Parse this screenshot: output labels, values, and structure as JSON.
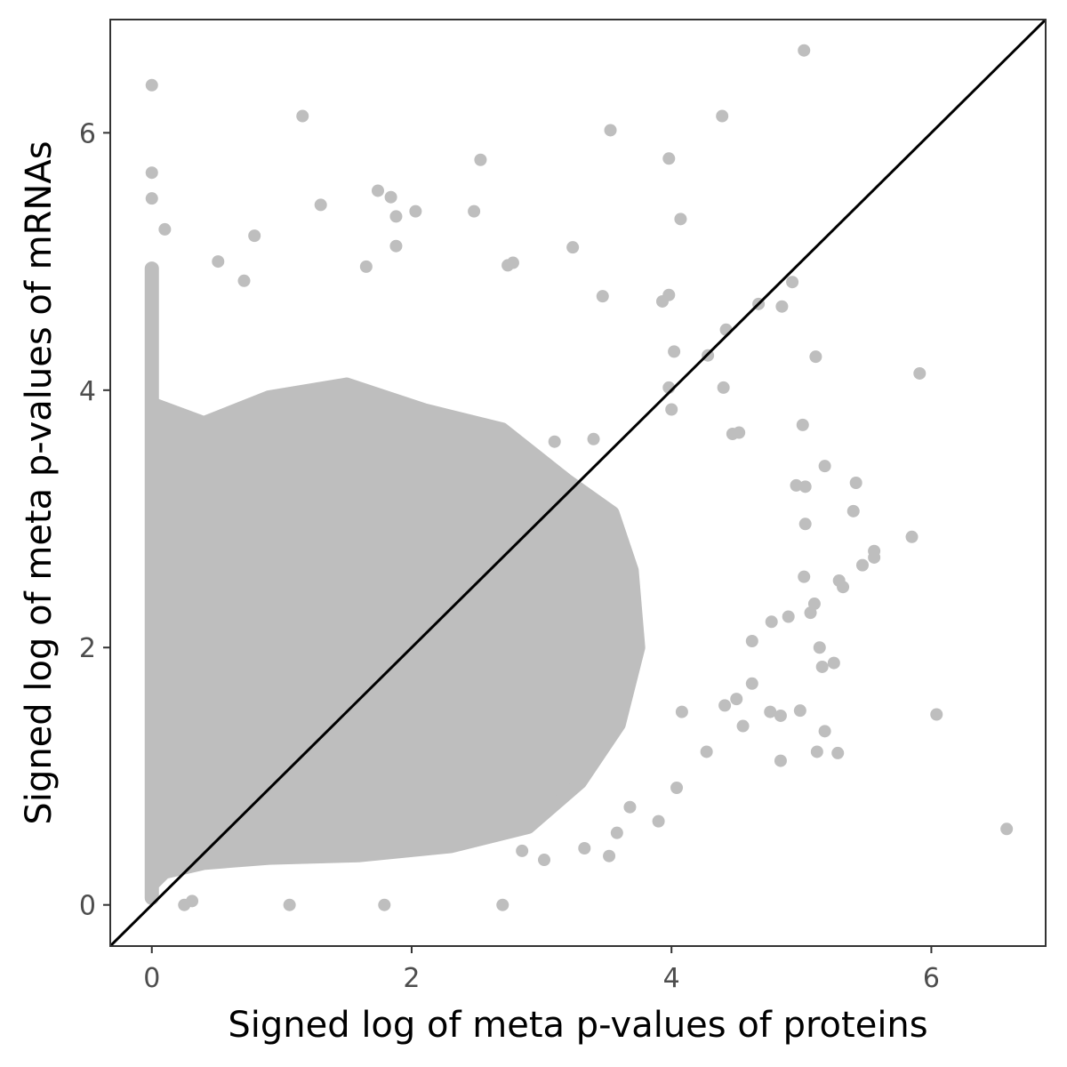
{
  "chart_data": {
    "type": "scatter",
    "title": "",
    "xlabel": "Signed log of meta p-values of proteins",
    "ylabel": "Signed log of meta p-values of mRNAs",
    "xlim": [
      -0.32,
      6.88
    ],
    "ylim": [
      -0.32,
      6.88
    ],
    "x_ticks": [
      0,
      2,
      4,
      6
    ],
    "y_ticks": [
      0,
      2,
      4,
      6
    ],
    "x_tick_labels": [
      "0",
      "2",
      "4",
      "6"
    ],
    "y_tick_labels": [
      "0",
      "2",
      "4",
      "6"
    ],
    "grid": false,
    "point_color": "#bebebe",
    "reference_line": {
      "slope": 1,
      "intercept": 0,
      "color": "#000000"
    },
    "series": [
      {
        "values_note_outliers": true,
        "points": [
          [
            5.02,
            6.64
          ],
          [
            0.0,
            6.37
          ],
          [
            1.16,
            6.13
          ],
          [
            4.39,
            6.13
          ],
          [
            3.53,
            6.02
          ],
          [
            3.98,
            5.8
          ],
          [
            2.53,
            5.79
          ],
          [
            0.0,
            5.69
          ],
          [
            0.0,
            5.49
          ],
          [
            1.3,
            5.44
          ],
          [
            1.74,
            5.55
          ],
          [
            1.84,
            5.5
          ],
          [
            2.48,
            5.39
          ],
          [
            2.03,
            5.39
          ],
          [
            4.07,
            5.33
          ],
          [
            0.1,
            5.25
          ],
          [
            0.79,
            5.2
          ],
          [
            1.88,
            5.35
          ],
          [
            1.88,
            5.12
          ],
          [
            3.24,
            5.11
          ],
          [
            2.78,
            4.99
          ],
          [
            2.74,
            4.97
          ],
          [
            0.51,
            5.0
          ],
          [
            1.65,
            4.96
          ],
          [
            4.93,
            4.84
          ],
          [
            0.71,
            4.85
          ],
          [
            4.28,
            4.27
          ],
          [
            5.91,
            4.13
          ],
          [
            4.02,
            4.3
          ],
          [
            3.98,
            4.02
          ],
          [
            4.67,
            4.67
          ],
          [
            4.85,
            4.65
          ],
          [
            3.47,
            4.73
          ],
          [
            3.93,
            4.69
          ],
          [
            3.98,
            4.74
          ],
          [
            4.42,
            4.47
          ],
          [
            5.11,
            4.26
          ],
          [
            4.0,
            3.85
          ],
          [
            4.4,
            4.02
          ],
          [
            4.52,
            3.67
          ],
          [
            4.47,
            3.66
          ],
          [
            3.4,
            3.62
          ],
          [
            3.1,
            3.6
          ],
          [
            5.01,
            3.73
          ],
          [
            5.18,
            3.41
          ],
          [
            5.42,
            3.28
          ],
          [
            4.96,
            3.26
          ],
          [
            5.03,
            3.25
          ],
          [
            5.4,
            3.06
          ],
          [
            5.03,
            2.96
          ],
          [
            5.85,
            2.86
          ],
          [
            5.56,
            2.75
          ],
          [
            5.56,
            2.7
          ],
          [
            5.47,
            2.64
          ],
          [
            5.32,
            2.47
          ],
          [
            5.29,
            2.52
          ],
          [
            5.02,
            2.55
          ],
          [
            5.1,
            2.34
          ],
          [
            5.07,
            2.27
          ],
          [
            4.9,
            2.24
          ],
          [
            4.77,
            2.2
          ],
          [
            5.14,
            2.0
          ],
          [
            5.25,
            1.88
          ],
          [
            5.16,
            1.85
          ],
          [
            4.62,
            2.05
          ],
          [
            4.62,
            1.72
          ],
          [
            4.5,
            1.6
          ],
          [
            4.55,
            1.39
          ],
          [
            4.76,
            1.5
          ],
          [
            4.84,
            1.47
          ],
          [
            4.99,
            1.51
          ],
          [
            5.18,
            1.35
          ],
          [
            5.12,
            1.19
          ],
          [
            5.28,
            1.18
          ],
          [
            4.84,
            1.12
          ],
          [
            6.04,
            1.48
          ],
          [
            6.58,
            0.59
          ],
          [
            4.41,
            1.55
          ],
          [
            4.08,
            1.5
          ],
          [
            4.04,
            0.91
          ],
          [
            3.9,
            0.65
          ],
          [
            3.68,
            0.76
          ],
          [
            2.7,
            0.0
          ],
          [
            1.06,
            0.0
          ],
          [
            1.79,
            0.0
          ],
          [
            0.25,
            0.0
          ],
          [
            0.31,
            0.03
          ],
          [
            2.85,
            0.42
          ],
          [
            3.02,
            0.35
          ],
          [
            3.33,
            0.44
          ],
          [
            3.52,
            0.38
          ],
          [
            3.58,
            0.56
          ],
          [
            4.27,
            1.19
          ]
        ]
      }
    ]
  }
}
